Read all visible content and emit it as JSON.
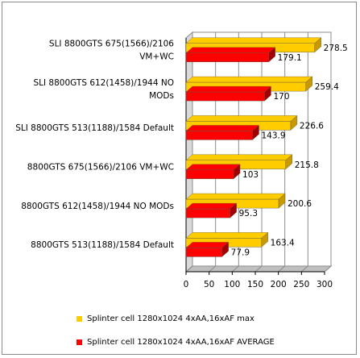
{
  "chart_data": {
    "type": "bar",
    "orientation": "horizontal",
    "three_d": true,
    "categories": [
      "SLI 8800GTS 675(1566)/2106 VM+WC",
      "SLI 8800GTS 612(1458)/1944 NO MODs",
      "SLI 8800GTS 513(1188)/1584 Default",
      "8800GTS 675(1566)/2106 VM+WC",
      "8800GTS 612(1458)/1944 NO MODs",
      "8800GTS 513(1188)/1584 Default"
    ],
    "category_lines": [
      [
        "SLI 8800GTS 675(1566)/2106",
        "VM+WC"
      ],
      [
        "SLI 8800GTS 612(1458)/1944 NO",
        "MODs"
      ],
      [
        "SLI 8800GTS 513(1188)/1584 Default"
      ],
      [
        "8800GTS 675(1566)/2106 VM+WC"
      ],
      [
        "8800GTS 612(1458)/1944 NO MODs"
      ],
      [
        "8800GTS 513(1188)/1584 Default"
      ]
    ],
    "series": [
      {
        "name": "Splinter cell 1280x1024 4xAA,16xAF max",
        "color": "#FFCC00",
        "shade": "#C89A00",
        "values": [
          278.5,
          259.4,
          226.6,
          215.8,
          200.6,
          163.4
        ]
      },
      {
        "name": "Splinter cell 1280x1024 4xAA,16xAF AVERAGE",
        "color": "#FF0000",
        "shade": "#A00000",
        "values": [
          179.1,
          170,
          143.9,
          103,
          95.3,
          77.9
        ]
      }
    ],
    "xlim": [
      0,
      300
    ],
    "xticks": [
      0,
      50,
      100,
      150,
      200,
      250,
      300
    ],
    "grid": true,
    "legend": "bottom"
  }
}
